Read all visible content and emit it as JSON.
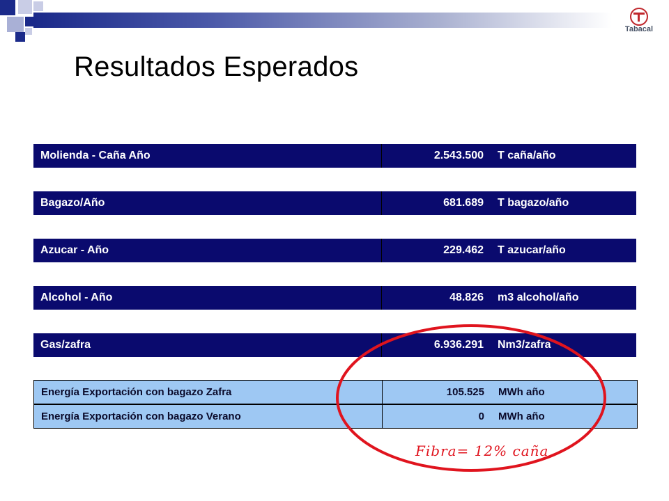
{
  "slide": {
    "title": "Resultados Esperados",
    "logo_text": "Tabacal",
    "annotation": "Fibra= 12% caña",
    "colors": {
      "header_row": "#0a0a6e",
      "energy_row": "#9ec8f3",
      "annotation": "#e0141e",
      "top_bar": "#1b2a8a"
    }
  },
  "table": {
    "rows": [
      {
        "label": "Molienda - Caña Año",
        "value": "2.543.500",
        "unit": "T caña/año"
      },
      {
        "label": "Bagazo/Año",
        "value": "681.689",
        "unit": "T bagazo/año"
      },
      {
        "label": "Azucar - Año",
        "value": "229.462",
        "unit": "T azucar/año"
      },
      {
        "label": "Alcohol - Año",
        "value": "48.826",
        "unit": "m3 alcohol/año"
      },
      {
        "label": "Gas/zafra",
        "value": "6.936.291",
        "unit": "Nm3/zafra"
      }
    ],
    "energy_rows": [
      {
        "label": "Energía Exportación con bagazo Zafra",
        "value": "105.525",
        "unit": "MWh  año"
      },
      {
        "label": "Energía Exportación con bagazo Verano",
        "value": "0",
        "unit": "MWh  año"
      }
    ]
  }
}
